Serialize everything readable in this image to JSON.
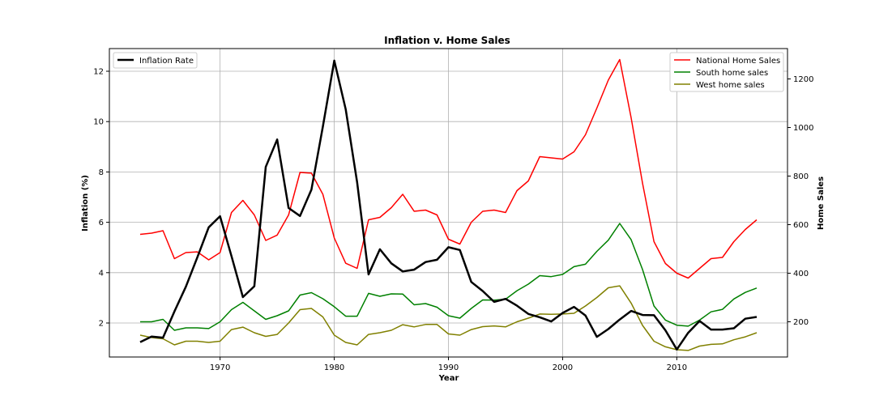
{
  "chart_data": {
    "type": "line",
    "title": "Inflation v. Home Sales",
    "xlabel": "Year",
    "ylabel_left": "Inflation (%)",
    "ylabel_right": "Home Sales",
    "xlim": [
      1963,
      2017
    ],
    "ylim_left": [
      0.65,
      12.9
    ],
    "ylim_right": [
      55,
      1325
    ],
    "xticks": [
      1970,
      1980,
      1990,
      2000,
      2010
    ],
    "yticks_left": [
      2,
      4,
      6,
      8,
      10,
      12
    ],
    "yticks_right": [
      200,
      400,
      600,
      800,
      1000,
      1200
    ],
    "grid": true,
    "legend_left_placement": "top-left",
    "legend_right_placement": "top-right",
    "x": [
      1963,
      1964,
      1965,
      1966,
      1967,
      1968,
      1969,
      1970,
      1971,
      1972,
      1973,
      1974,
      1975,
      1976,
      1977,
      1978,
      1979,
      1980,
      1981,
      1982,
      1983,
      1984,
      1985,
      1986,
      1987,
      1988,
      1989,
      1990,
      1991,
      1992,
      1993,
      1994,
      1995,
      1996,
      1997,
      1998,
      1999,
      2000,
      2001,
      2002,
      2003,
      2004,
      2005,
      2006,
      2007,
      2008,
      2009,
      2010,
      2011,
      2012,
      2013,
      2014,
      2015,
      2016,
      2017
    ],
    "left_series": [
      {
        "name": "Inflation Rate",
        "color": "#000000",
        "values": [
          1.24,
          1.46,
          1.42,
          2.46,
          3.44,
          4.6,
          5.8,
          6.24,
          4.66,
          3.03,
          3.46,
          8.2,
          9.29,
          6.57,
          6.25,
          7.3,
          9.8,
          12.42,
          10.49,
          7.59,
          3.93,
          4.93,
          4.37,
          4.05,
          4.12,
          4.42,
          4.51,
          5.01,
          4.9,
          3.63,
          3.27,
          2.84,
          2.96,
          2.69,
          2.36,
          2.23,
          2.06,
          2.4,
          2.64,
          2.3,
          1.45,
          1.76,
          2.14,
          2.48,
          2.32,
          2.31,
          1.71,
          0.95,
          1.61,
          2.08,
          1.74,
          1.74,
          1.79,
          2.17,
          2.24
        ]
      }
    ],
    "right_series": [
      {
        "name": "National Home Sales",
        "color": "#ff0000",
        "values": [
          560,
          565,
          575,
          460,
          485,
          488,
          455,
          485,
          650,
          700,
          640,
          535,
          557,
          640,
          815,
          812,
          725,
          545,
          441,
          420,
          620,
          630,
          670,
          725,
          655,
          660,
          640,
          540,
          520,
          610,
          655,
          660,
          650,
          740,
          780,
          880,
          875,
          870,
          900,
          970,
          1080,
          1195,
          1280,
          1040,
          770,
          530,
          440,
          400,
          380,
          420,
          460,
          465,
          530,
          580,
          620
        ]
      },
      {
        "name": "South home sales",
        "color": "#008000",
        "values": [
          200,
          200,
          210,
          165,
          175,
          175,
          172,
          200,
          250,
          280,
          245,
          210,
          225,
          245,
          310,
          320,
          295,
          262,
          223,
          223,
          317,
          305,
          315,
          314,
          270,
          275,
          260,
          225,
          215,
          255,
          290,
          289,
          293,
          328,
          355,
          390,
          386,
          395,
          427,
          437,
          490,
          536,
          605,
          538,
          415,
          265,
          207,
          186,
          182,
          207,
          241,
          251,
          294,
          321,
          339
        ]
      },
      {
        "name": "West home sales",
        "color": "#808000",
        "values": [
          145,
          135,
          130,
          105,
          120,
          120,
          115,
          120,
          168,
          178,
          155,
          140,
          148,
          195,
          250,
          255,
          220,
          145,
          115,
          105,
          148,
          155,
          165,
          188,
          179,
          189,
          189,
          150,
          145,
          168,
          180,
          183,
          179,
          200,
          215,
          232,
          231,
          232,
          235,
          265,
          300,
          340,
          348,
          277,
          185,
          120,
          97,
          85,
          82,
          100,
          107,
          109,
          126,
          138,
          155
        ]
      }
    ]
  }
}
